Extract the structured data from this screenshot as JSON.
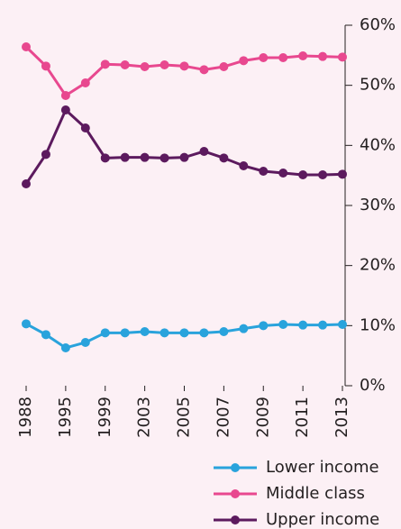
{
  "chart_data": {
    "type": "line",
    "categories": [
      "1988",
      null,
      "1995",
      null,
      "1999",
      null,
      "2003",
      null,
      "2005",
      null,
      "2007",
      null,
      "2009",
      null,
      "2011",
      null,
      "2013"
    ],
    "series": [
      {
        "name": "Lower income",
        "color": "#29a3dc",
        "values": [
          10.3,
          8.5,
          6.3,
          7.2,
          8.8,
          8.8,
          9.0,
          8.8,
          8.8,
          8.8,
          9.0,
          9.5,
          10.0,
          10.2,
          10.1,
          10.1,
          10.2
        ]
      },
      {
        "name": "Middle class",
        "color": "#e8488f",
        "values": [
          56.4,
          53.2,
          48.3,
          50.4,
          53.5,
          53.4,
          53.1,
          53.4,
          53.2,
          52.6,
          53.1,
          54.1,
          54.6,
          54.6,
          54.9,
          54.8,
          54.7
        ]
      },
      {
        "name": "Upper income",
        "color": "#5c1a5e",
        "values": [
          33.6,
          38.5,
          45.9,
          42.9,
          37.9,
          38.0,
          38.0,
          37.9,
          38.0,
          39.0,
          37.9,
          36.6,
          35.7,
          35.4,
          35.1,
          35.1,
          35.2
        ]
      }
    ],
    "ylim": [
      0,
      60
    ],
    "yticks": [
      {
        "value": 0,
        "label": "0%"
      },
      {
        "value": 10,
        "label": "10%"
      },
      {
        "value": 20,
        "label": "20%"
      },
      {
        "value": 30,
        "label": "30%"
      },
      {
        "value": 40,
        "label": "40%"
      },
      {
        "value": 50,
        "label": "50%"
      },
      {
        "value": 60,
        "label": "60%"
      }
    ],
    "legend": "bottom-right"
  }
}
